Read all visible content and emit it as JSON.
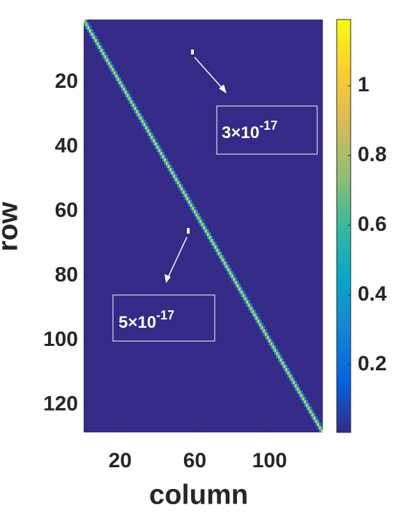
{
  "chart_data": {
    "type": "heatmap",
    "x_label": "column",
    "y_label": "row",
    "size": 128,
    "band": [
      {
        "offset": -1,
        "value": 0.35
      },
      {
        "offset": 0,
        "value": 1.0
      },
      {
        "offset": 1,
        "value": 0.35
      }
    ],
    "background": 0.0,
    "xlim": [
      0.5,
      128.5
    ],
    "xticks": [
      20,
      60,
      100
    ],
    "ylim": [
      0.5,
      128.5
    ],
    "yticks": [
      20,
      40,
      60,
      80,
      100,
      120
    ],
    "clim": [
      0.006,
      1.19
    ],
    "cticks": [
      0.2,
      0.4,
      0.6,
      0.8,
      1
    ],
    "colormap": "parula",
    "annotations": [
      {
        "label": "3×10",
        "exponent": "-17"
      },
      {
        "label": "5×10",
        "exponent": "-17"
      }
    ]
  }
}
